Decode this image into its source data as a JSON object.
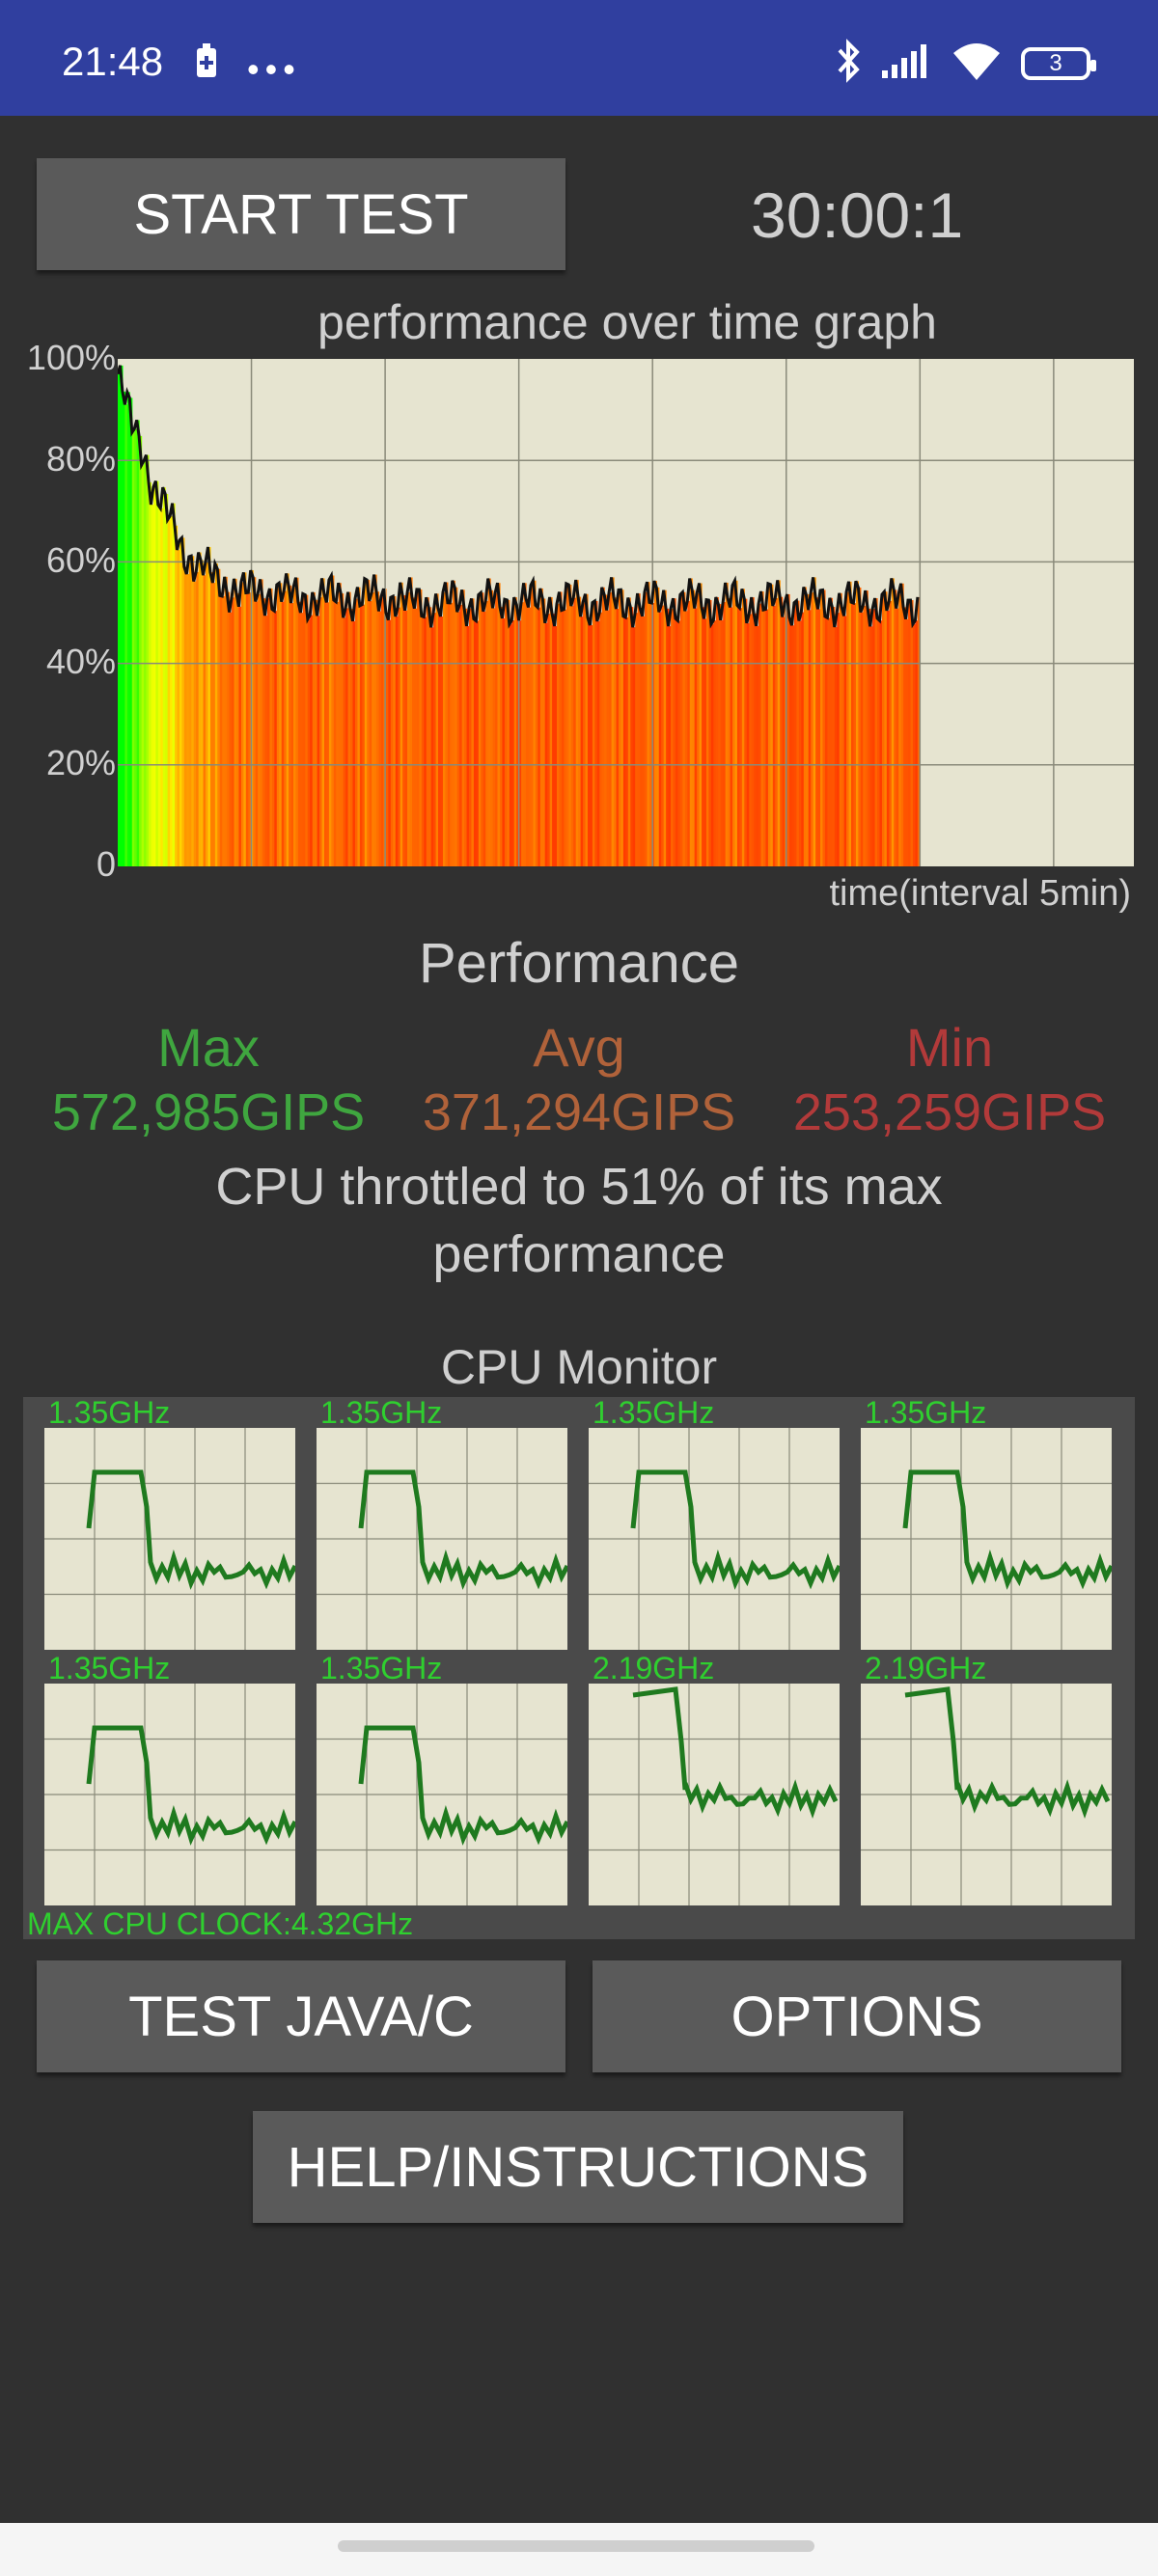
{
  "status_bar": {
    "time": "21:48",
    "left_icons": [
      "battery-saver-icon",
      "more-icon"
    ],
    "right_icons": [
      "bluetooth-icon",
      "signal-icon",
      "wifi-icon"
    ],
    "battery_level": "3"
  },
  "controls": {
    "start_test_label": "START TEST",
    "timer": "30:00:1",
    "test_java_label": "TEST JAVA/C",
    "options_label": "OPTIONS",
    "help_label": "HELP/INSTRUCTIONS"
  },
  "chart_data": {
    "type": "area",
    "title": "performance over time graph",
    "xlabel": "time(interval 5min)",
    "ylabel": "",
    "y_ticks": [
      "100%",
      "80%",
      "60%",
      "40%",
      "20%",
      "0"
    ],
    "ylim": [
      0,
      100
    ],
    "xlim": [
      0,
      38
    ],
    "x_interval_minutes": 5,
    "grid": true,
    "series": [
      {
        "values": [
          97,
          95,
          93,
          92,
          90,
          88,
          86,
          87,
          85,
          84,
          83,
          82,
          80,
          78,
          76,
          75,
          74,
          73,
          72,
          71,
          70,
          69,
          68,
          67,
          66,
          65,
          64,
          63,
          62,
          62,
          61,
          61,
          60,
          60,
          59,
          59,
          59,
          58,
          58,
          57,
          57,
          57,
          56,
          56,
          56,
          56,
          55,
          55,
          55,
          55,
          55,
          54,
          54,
          54,
          54,
          54,
          54,
          54,
          54,
          54,
          54,
          54,
          54,
          54,
          54,
          54,
          54,
          54,
          54,
          54,
          54,
          53,
          53,
          53,
          53,
          53,
          53,
          53,
          53,
          53,
          53,
          53,
          53,
          53,
          53,
          53,
          53,
          53,
          53,
          53,
          53,
          53,
          53,
          53,
          53,
          53,
          53,
          53,
          53,
          53,
          53,
          53,
          53,
          53,
          53,
          53,
          53,
          53,
          53,
          53,
          53,
          53,
          53,
          53,
          53,
          53,
          53,
          53,
          53,
          53,
          52,
          52,
          52,
          52,
          52,
          52,
          52,
          52,
          52,
          52,
          52,
          52,
          52,
          52,
          52,
          52,
          52,
          52,
          52,
          52,
          52,
          52,
          52,
          52,
          52,
          52,
          52,
          52,
          52,
          52,
          52,
          52,
          52,
          52,
          52,
          52,
          52,
          52,
          52,
          52,
          52,
          52,
          52,
          52,
          52,
          52,
          52,
          52,
          52,
          52,
          52,
          52,
          52,
          52,
          52,
          52,
          52,
          52,
          52,
          52,
          52,
          52,
          52,
          52,
          52,
          52,
          52,
          52,
          52,
          52,
          52,
          52,
          52,
          52,
          52,
          52,
          52,
          52,
          52,
          52,
          52,
          52,
          52,
          52,
          52,
          52,
          52,
          52,
          52,
          52,
          52,
          52,
          52,
          52,
          52,
          52,
          52,
          52,
          52,
          52,
          52,
          52,
          52,
          52,
          52,
          52,
          52,
          52,
          52,
          52,
          52,
          52,
          52,
          52,
          52,
          52,
          52,
          52,
          52,
          52,
          52,
          52,
          52,
          52,
          52,
          52,
          52,
          52,
          52,
          52,
          52,
          52,
          52,
          52,
          52,
          52,
          52,
          52,
          52,
          52,
          52,
          52,
          52,
          52,
          52,
          52,
          52,
          52,
          52,
          52,
          52,
          52,
          52,
          52,
          52,
          52,
          52,
          52,
          52,
          52,
          52,
          52,
          52,
          52,
          52,
          52,
          52,
          52,
          52,
          52,
          52,
          52,
          52,
          52,
          52,
          52,
          52,
          52,
          52,
          52,
          52,
          52,
          52,
          52,
          52,
          52,
          52,
          52,
          52,
          52,
          52,
          52,
          52,
          52,
          52,
          52,
          52,
          52,
          52,
          52,
          52,
          52,
          52,
          52,
          52,
          52,
          52,
          52,
          52,
          52,
          52,
          52,
          52,
          52,
          52,
          52,
          52,
          52
        ]
      }
    ],
    "colors": {
      "background": "#e6e4d0",
      "line": "#111111",
      "grid": "#8a8a7a"
    }
  },
  "performance": {
    "title": "Performance",
    "max_label": "Max",
    "avg_label": "Avg",
    "min_label": "Min",
    "max_value": "572,985GIPS",
    "avg_value": "371,294GIPS",
    "min_value": "253,259GIPS",
    "throttle_text": "CPU throttled to 51% of its max performance",
    "colors": {
      "max": "#3fa63f",
      "avg": "#b0623a",
      "min": "#b23a3a"
    }
  },
  "cpu_monitor": {
    "title": "CPU Monitor",
    "max_clock": "MAX CPU CLOCK:4.32GHz",
    "cores": [
      {
        "freq": "1.35GHz",
        "shape": "low"
      },
      {
        "freq": "1.35GHz",
        "shape": "low"
      },
      {
        "freq": "1.35GHz",
        "shape": "low"
      },
      {
        "freq": "1.35GHz",
        "shape": "low"
      },
      {
        "freq": "1.35GHz",
        "shape": "low"
      },
      {
        "freq": "1.35GHz",
        "shape": "low"
      },
      {
        "freq": "2.19GHz",
        "shape": "high"
      },
      {
        "freq": "2.19GHz",
        "shape": "high"
      }
    ]
  }
}
